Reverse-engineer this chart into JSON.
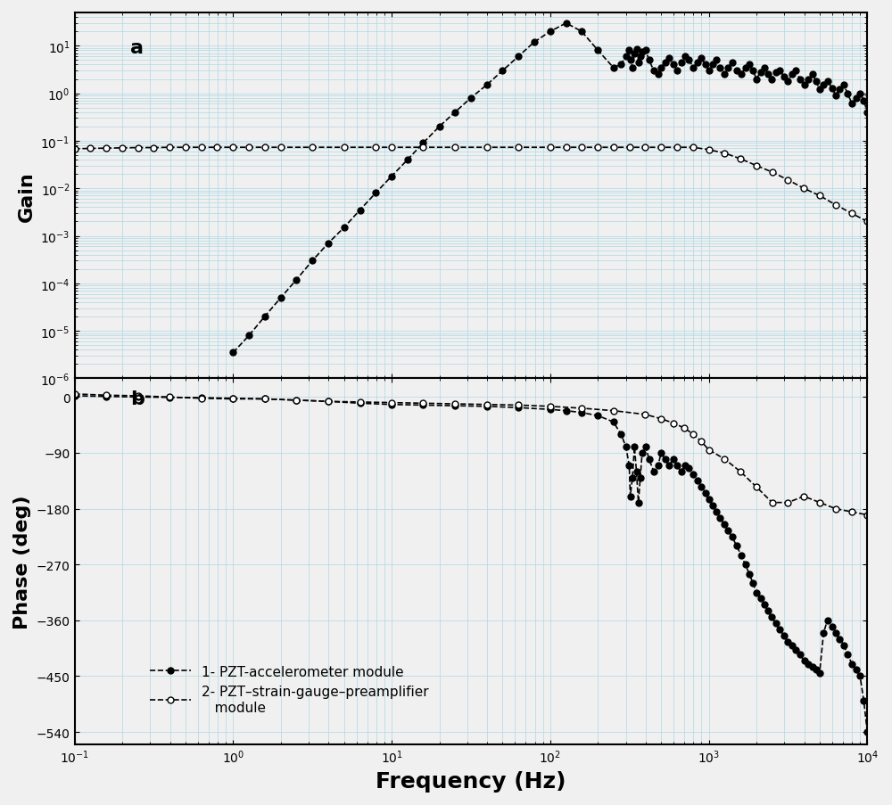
{
  "title": "",
  "xlabel": "Frequency (Hz)",
  "ylabel_top": "Gain",
  "ylabel_bottom": "Phase (deg)",
  "label_a": "a",
  "label_b": "b",
  "legend_1": "1- PZT-accelerometer module",
  "legend_2": "2- PZT–strain-gauge–preamplifier\n   module",
  "bg_color": "#f0f0f0",
  "line_color": "black",
  "freq_min": 0.1,
  "freq_max": 10000,
  "gain_ylim_min": 1e-06,
  "gain_ylim_max": 50,
  "phase_ylim_min": -560,
  "phase_ylim_max": 30,
  "phase_yticks": [
    0,
    -90,
    -180,
    -270,
    -360,
    -450,
    -540
  ]
}
